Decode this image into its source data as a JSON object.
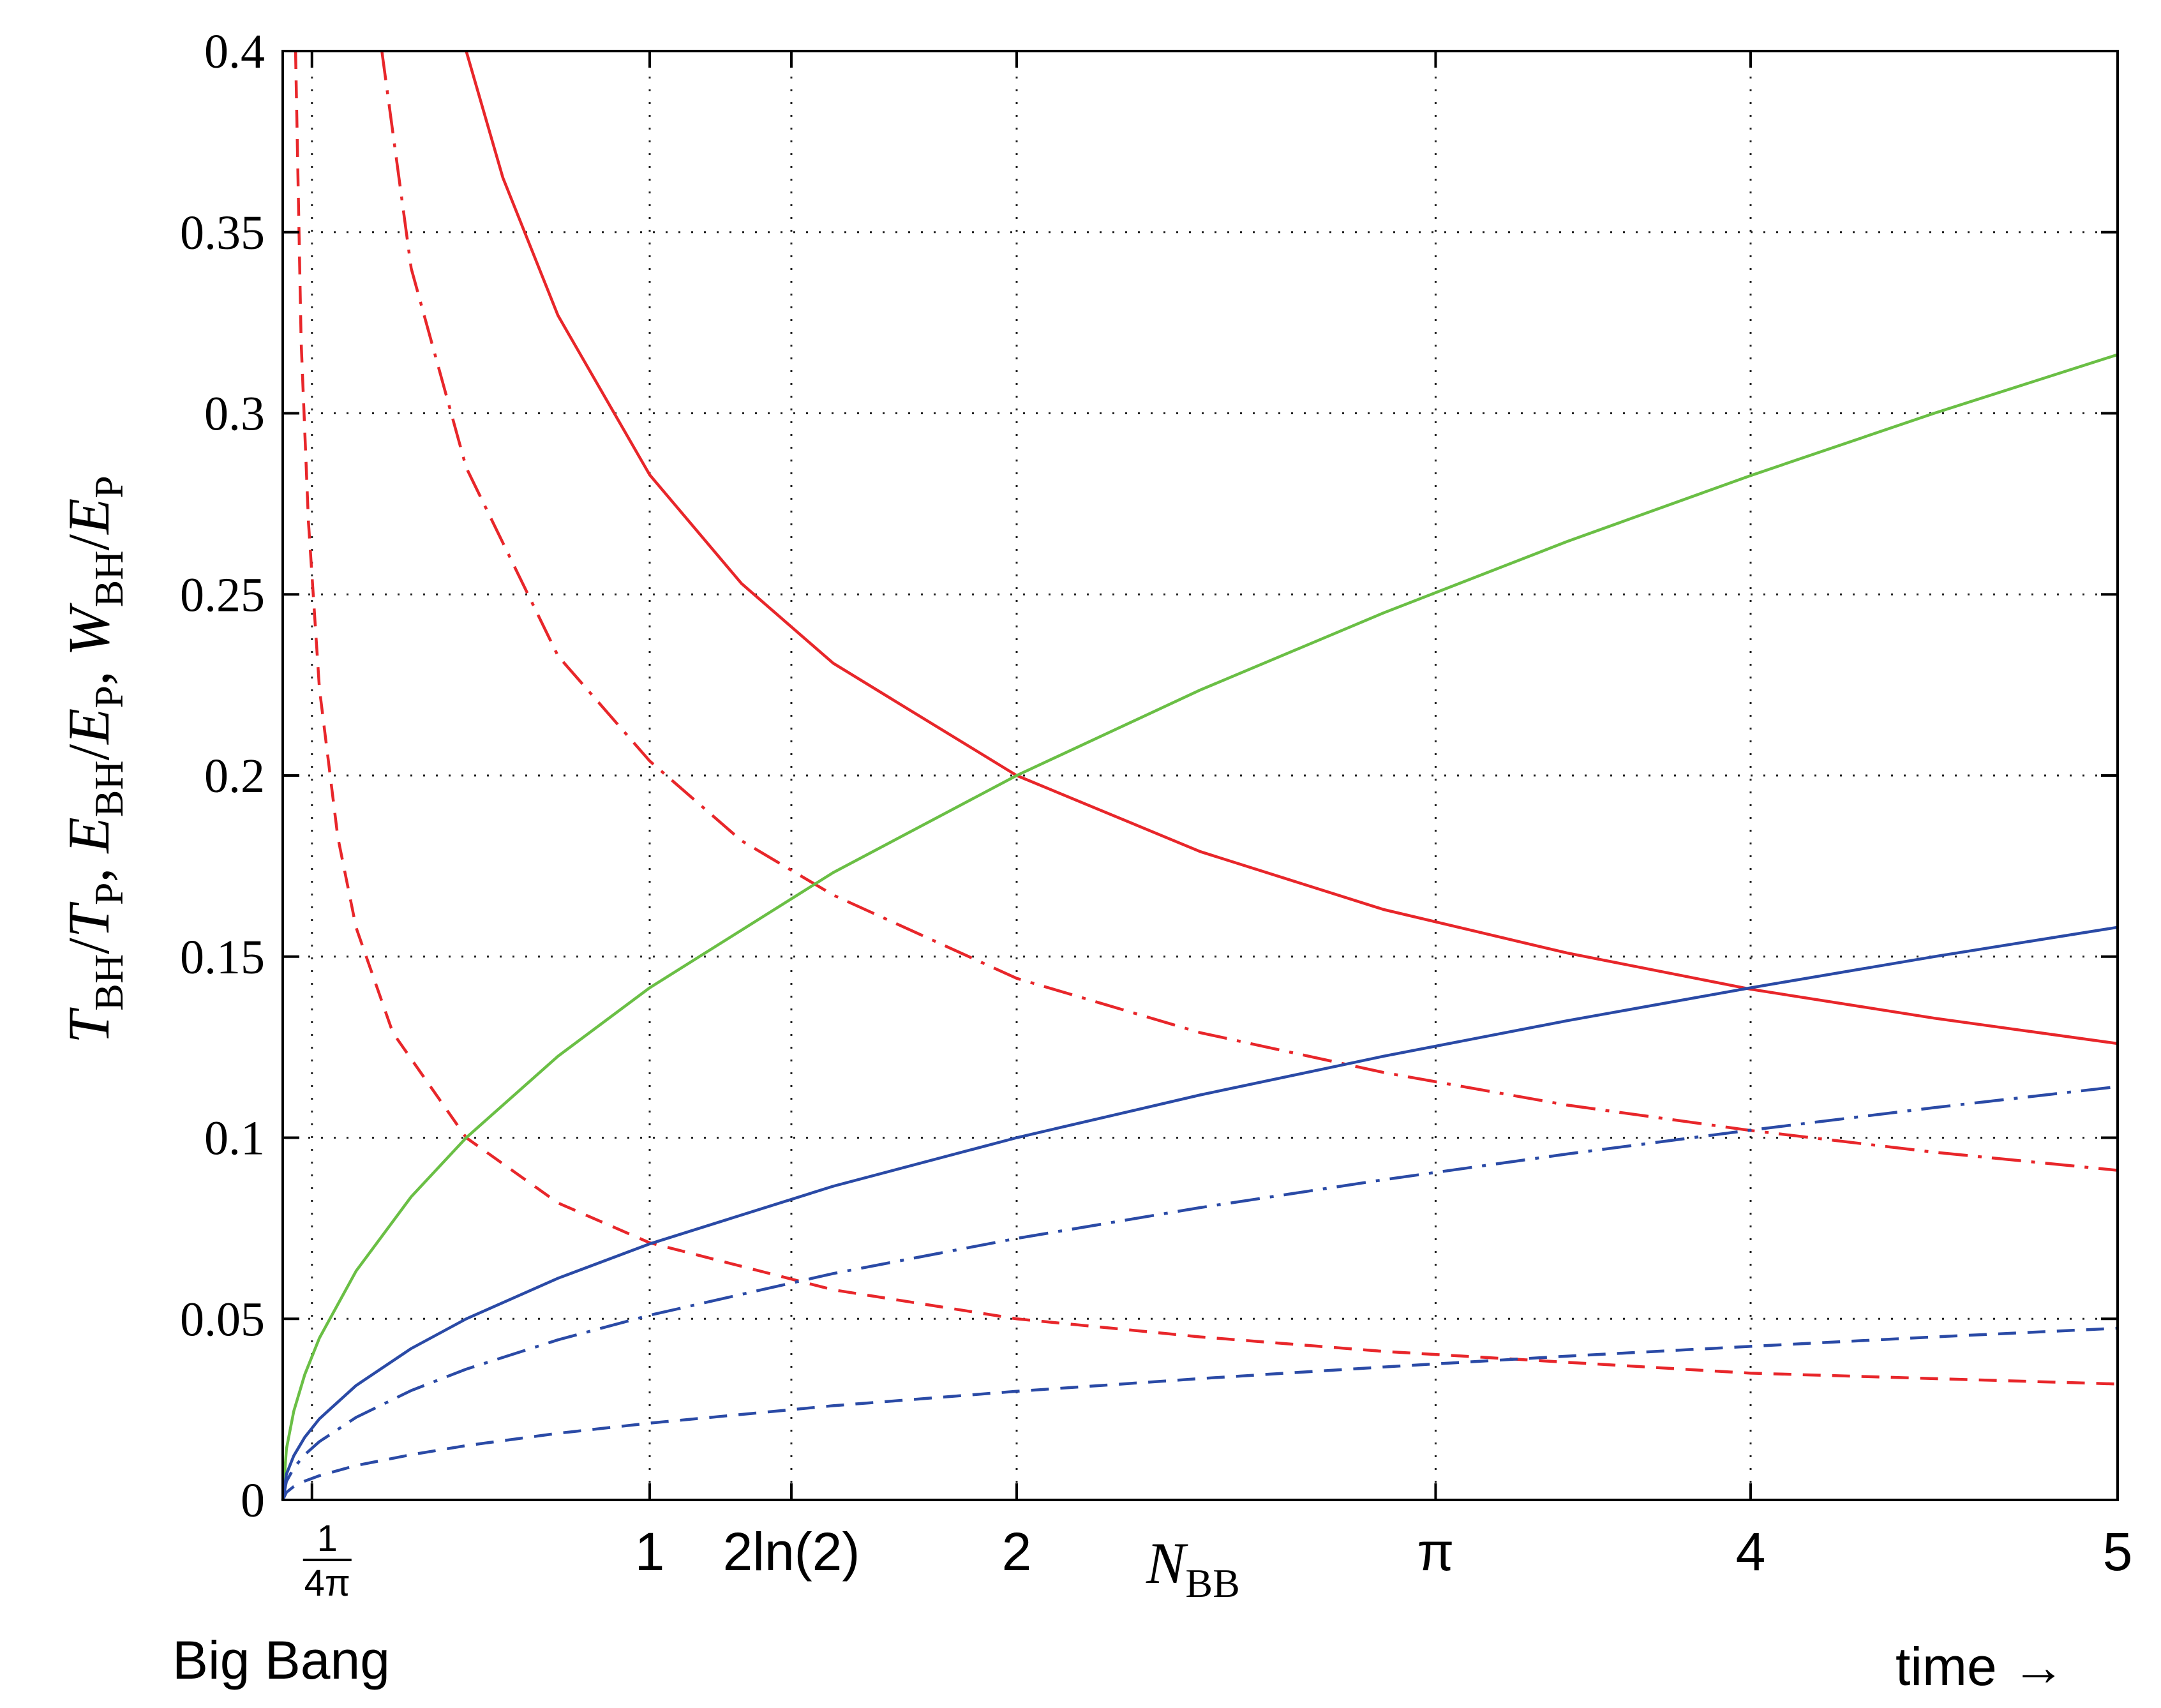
{
  "chart_data": {
    "type": "line",
    "ylabel": {
      "parts": [
        {
          "t": "T",
          "it": true
        },
        {
          "t": "BH",
          "sub": true
        },
        {
          "t": "/"
        },
        {
          "t": "T",
          "it": true
        },
        {
          "t": "P",
          "sub": true
        },
        {
          "t": ", "
        },
        {
          "t": "E",
          "it": true
        },
        {
          "t": "BH",
          "sub": true
        },
        {
          "t": "/"
        },
        {
          "t": "E",
          "it": true
        },
        {
          "t": "P",
          "sub": true
        },
        {
          "t": ", "
        },
        {
          "t": "W",
          "it": true
        },
        {
          "t": "BH",
          "sub": true
        },
        {
          "t": "/"
        },
        {
          "t": "E",
          "it": true
        },
        {
          "t": "P",
          "sub": true
        }
      ]
    },
    "xlim": [
      0,
      5
    ],
    "ylim": [
      0,
      0.4
    ],
    "grid": true,
    "y_ticks": [
      {
        "value": 0,
        "label": "0"
      },
      {
        "value": 0.05,
        "label": "0.05"
      },
      {
        "value": 0.1,
        "label": "0.1"
      },
      {
        "value": 0.15,
        "label": "0.15"
      },
      {
        "value": 0.2,
        "label": "0.2"
      },
      {
        "value": 0.25,
        "label": "0.25"
      },
      {
        "value": 0.3,
        "label": "0.3"
      },
      {
        "value": 0.35,
        "label": "0.35"
      },
      {
        "value": 0.4,
        "label": "0.4"
      }
    ],
    "x_ticks": [
      {
        "value": 0.0796,
        "label": "1/4π",
        "num": "1",
        "den": "4π"
      },
      {
        "value": 1,
        "label": "1"
      },
      {
        "value": 1.386,
        "label": "2ln(2)"
      },
      {
        "value": 2,
        "label": "2"
      },
      {
        "value": 3.1416,
        "label": "π"
      },
      {
        "value": 4,
        "label": "4"
      },
      {
        "value": 5,
        "label": "5"
      }
    ],
    "x_annotations": {
      "nbb_main": "N",
      "nbb_sub": "BB",
      "origin_label": "Big Bang",
      "time_label": "time →"
    },
    "series": [
      {
        "color": "#e8262a",
        "dash": "solid",
        "x": [
          0.5,
          0.6,
          0.75,
          1.0,
          1.25,
          1.5,
          2.0,
          2.5,
          3.0,
          3.5,
          4.0,
          4.5,
          5.0
        ],
        "y": [
          0.4,
          0.365,
          0.327,
          0.283,
          0.253,
          0.231,
          0.2,
          0.179,
          0.163,
          0.151,
          0.141,
          0.133,
          0.126
        ]
      },
      {
        "color": "#e8262a",
        "dash": "dashdot",
        "x": [
          0.27,
          0.35,
          0.5,
          0.75,
          1.0,
          1.25,
          1.5,
          2.0,
          2.5,
          3.0,
          3.5,
          4.0,
          4.5,
          5.0
        ],
        "y": [
          0.4,
          0.34,
          0.285,
          0.233,
          0.204,
          0.182,
          0.167,
          0.144,
          0.129,
          0.118,
          0.109,
          0.102,
          0.096,
          0.091
        ]
      },
      {
        "color": "#e8262a",
        "dash": "dashed",
        "x": [
          0.035,
          0.05,
          0.07,
          0.1,
          0.15,
          0.2,
          0.3,
          0.5,
          0.75,
          1.0,
          1.5,
          2.0,
          2.5,
          3.0,
          4.0,
          5.0
        ],
        "y": [
          0.4,
          0.32,
          0.27,
          0.224,
          0.183,
          0.158,
          0.129,
          0.1,
          0.082,
          0.071,
          0.058,
          0.05,
          0.045,
          0.041,
          0.035,
          0.032
        ]
      },
      {
        "color": "#6abf45",
        "dash": "solid",
        "x": [
          0.0,
          0.01,
          0.03,
          0.06,
          0.1,
          0.2,
          0.35,
          0.5,
          0.75,
          1.0,
          1.5,
          2.0,
          2.5,
          3.0,
          3.5,
          4.0,
          4.5,
          5.0
        ],
        "y": [
          0.0,
          0.0141,
          0.0245,
          0.0346,
          0.0447,
          0.0632,
          0.0837,
          0.1,
          0.1225,
          0.1414,
          0.1732,
          0.2,
          0.2236,
          0.2449,
          0.2646,
          0.2828,
          0.3,
          0.3162
        ]
      },
      {
        "color": "#2a4aa6",
        "dash": "solid",
        "x": [
          0.0,
          0.01,
          0.03,
          0.06,
          0.1,
          0.2,
          0.35,
          0.5,
          0.75,
          1.0,
          1.5,
          2.0,
          2.5,
          3.0,
          3.5,
          4.0,
          4.5,
          5.0
        ],
        "y": [
          0.0,
          0.0071,
          0.0122,
          0.0173,
          0.0224,
          0.0316,
          0.0418,
          0.05,
          0.0612,
          0.0707,
          0.0866,
          0.1,
          0.1118,
          0.1225,
          0.1323,
          0.1414,
          0.15,
          0.1581
        ]
      },
      {
        "color": "#2a4aa6",
        "dash": "dashdot",
        "x": [
          0.0,
          0.01,
          0.03,
          0.06,
          0.1,
          0.2,
          0.35,
          0.5,
          0.75,
          1.0,
          1.5,
          2.0,
          2.5,
          3.0,
          3.5,
          4.0,
          4.5,
          5.0
        ],
        "y": [
          0.0,
          0.0051,
          0.0088,
          0.0125,
          0.0161,
          0.0228,
          0.0302,
          0.0361,
          0.0442,
          0.051,
          0.0625,
          0.0722,
          0.0807,
          0.0884,
          0.0955,
          0.1021,
          0.1083,
          0.1141
        ]
      },
      {
        "color": "#2a4aa6",
        "dash": "dashed",
        "x": [
          0.0,
          0.01,
          0.03,
          0.06,
          0.1,
          0.2,
          0.35,
          0.5,
          0.75,
          1.0,
          1.5,
          2.0,
          2.5,
          3.0,
          3.5,
          4.0,
          4.5,
          5.0
        ],
        "y": [
          0.0,
          0.0021,
          0.0037,
          0.0052,
          0.0067,
          0.0095,
          0.0125,
          0.015,
          0.0184,
          0.0212,
          0.026,
          0.03,
          0.0335,
          0.0367,
          0.0397,
          0.0424,
          0.045,
          0.0474
        ]
      }
    ]
  }
}
